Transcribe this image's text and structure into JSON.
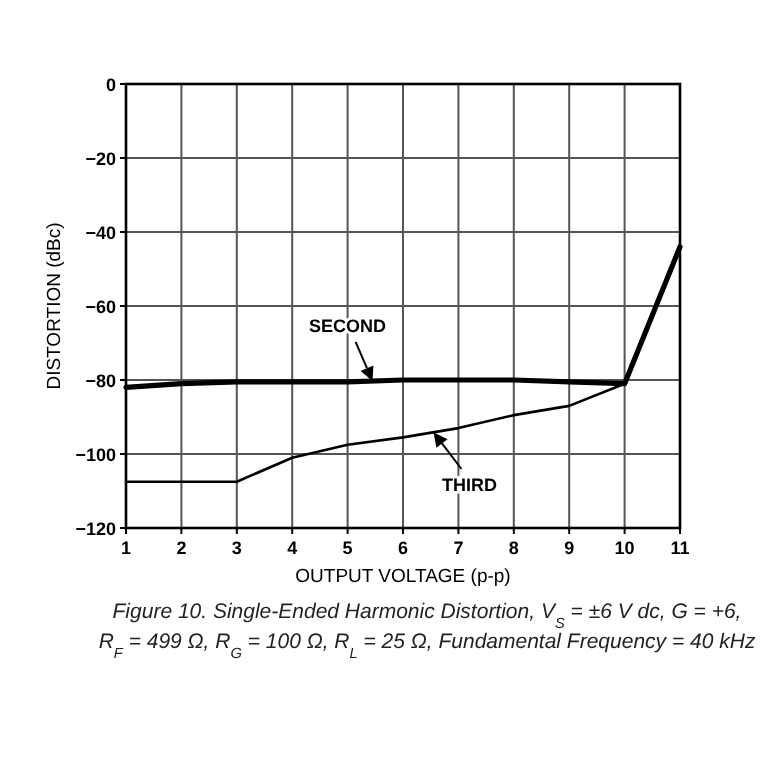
{
  "chart_data": {
    "type": "line",
    "xlabel": "OUTPUT VOLTAGE (p-p)",
    "ylabel": "DISTORTION (dBc)",
    "x": [
      1,
      2,
      3,
      4,
      5,
      6,
      7,
      8,
      9,
      10,
      11
    ],
    "series": [
      {
        "name": "SECOND",
        "color": "#000000",
        "values": [
          -82,
          -81,
          -80.5,
          -80.5,
          -80.5,
          -80,
          -80,
          -80,
          -80.5,
          -81,
          -44
        ]
      },
      {
        "name": "THIRD",
        "color": "#000000",
        "values": [
          -107.5,
          -107.5,
          -107.5,
          -101,
          -97.5,
          -95.5,
          -93,
          -89.5,
          -87,
          -81,
          null
        ]
      }
    ],
    "xlim": [
      1,
      11
    ],
    "xticks": [
      1,
      2,
      3,
      4,
      5,
      6,
      7,
      8,
      9,
      10,
      11
    ],
    "ylim": [
      -120,
      0
    ],
    "yticks": [
      {
        "value": -120,
        "label": "−120"
      },
      {
        "value": -100,
        "label": "−100"
      },
      {
        "value": -80,
        "label": "−80"
      },
      {
        "value": -60,
        "label": "−60"
      },
      {
        "value": -40,
        "label": "−40"
      },
      {
        "value": -20,
        "label": "−20"
      },
      0
    ],
    "grid": true,
    "marker": "none",
    "line_style": "solid",
    "annotations": [
      "Figure 10. Single-Ended Harmonic Distortion, V$_{S}$ = ±6 V dc, G = +6,",
      "R$_{F}$ = 499 Ω, R$_{G}$ = 100 Ω, R$_{L}$ = 25 Ω, Fundamental Frequency = 40 kHz"
    ]
  }
}
